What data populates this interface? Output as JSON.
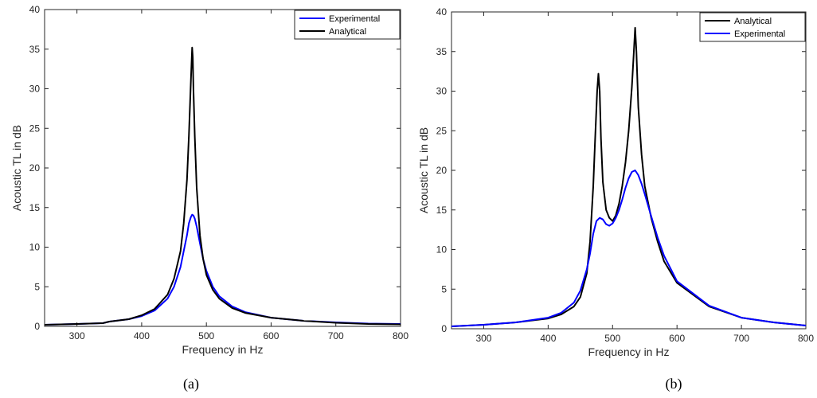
{
  "chart_data": [
    {
      "type": "line",
      "caption": "(a)",
      "xlabel": "Frequency in Hz",
      "ylabel": "Acoustic TL in dB",
      "xlim": [
        250,
        800
      ],
      "ylim": [
        0,
        40
      ],
      "xticks": [
        300,
        400,
        500,
        600,
        700,
        800
      ],
      "yticks": [
        0,
        5,
        10,
        15,
        20,
        25,
        30,
        35,
        40
      ],
      "grid": false,
      "legend": "top-right",
      "series": [
        {
          "name": "Experimental",
          "color": "#0000ff",
          "x": [
            250,
            300,
            340,
            350,
            380,
            400,
            420,
            440,
            450,
            460,
            465,
            470,
            473,
            476,
            478,
            480,
            482,
            485,
            490,
            495,
            500,
            510,
            520,
            540,
            560,
            600,
            650,
            700,
            750,
            800
          ],
          "y": [
            0.2,
            0.3,
            0.4,
            0.6,
            0.9,
            1.3,
            2.0,
            3.5,
            5.0,
            7.5,
            9.5,
            11.5,
            13.0,
            13.8,
            14.1,
            14.0,
            13.6,
            12.6,
            10.5,
            8.5,
            7.0,
            5.0,
            3.8,
            2.5,
            1.8,
            1.1,
            0.7,
            0.5,
            0.35,
            0.3
          ]
        },
        {
          "name": "Analytical",
          "color": "#000000",
          "x": [
            250,
            300,
            340,
            350,
            380,
            400,
            420,
            440,
            450,
            460,
            465,
            470,
            473,
            476,
            478,
            479,
            480,
            482,
            485,
            490,
            495,
            500,
            510,
            520,
            540,
            560,
            600,
            650,
            700,
            750,
            800
          ],
          "y": [
            0.2,
            0.3,
            0.4,
            0.6,
            0.9,
            1.4,
            2.2,
            4.0,
            6.0,
            9.5,
            13.0,
            18.5,
            24.0,
            31.0,
            35.2,
            34.0,
            30.0,
            24.0,
            17.5,
            11.5,
            8.5,
            6.5,
            4.6,
            3.5,
            2.3,
            1.7,
            1.1,
            0.7,
            0.45,
            0.3,
            0.25
          ]
        }
      ]
    },
    {
      "type": "line",
      "caption": "(b)",
      "xlabel": "Frequency in Hz",
      "ylabel": "Acoustic TL in dB",
      "xlim": [
        250,
        800
      ],
      "ylim": [
        0,
        40
      ],
      "xticks": [
        300,
        400,
        500,
        600,
        700,
        800
      ],
      "yticks": [
        0,
        5,
        10,
        15,
        20,
        25,
        30,
        35,
        40
      ],
      "grid": false,
      "legend": "top-right",
      "series": [
        {
          "name": "Analytical",
          "color": "#000000",
          "x": [
            250,
            300,
            350,
            400,
            420,
            440,
            450,
            460,
            465,
            470,
            473,
            476,
            478,
            480,
            482,
            485,
            490,
            495,
            500,
            505,
            510,
            515,
            520,
            525,
            530,
            533,
            535,
            537,
            540,
            545,
            550,
            560,
            570,
            580,
            600,
            650,
            700,
            750,
            800
          ],
          "y": [
            0.3,
            0.5,
            0.8,
            1.3,
            1.8,
            2.8,
            4.0,
            7.0,
            11.0,
            18.0,
            24.0,
            30.0,
            32.2,
            30.0,
            24.0,
            18.5,
            15.0,
            14.0,
            13.6,
            14.3,
            15.8,
            18.0,
            21.0,
            25.0,
            30.5,
            35.0,
            38.0,
            35.0,
            28.0,
            22.0,
            18.0,
            14.0,
            11.0,
            8.5,
            5.8,
            2.8,
            1.4,
            0.8,
            0.4
          ]
        },
        {
          "name": "Experimental",
          "color": "#0000ff",
          "x": [
            250,
            300,
            350,
            400,
            420,
            440,
            450,
            460,
            465,
            470,
            475,
            480,
            485,
            490,
            495,
            500,
            505,
            510,
            515,
            520,
            525,
            530,
            535,
            540,
            545,
            550,
            560,
            570,
            580,
            600,
            650,
            700,
            750,
            800
          ],
          "y": [
            0.3,
            0.5,
            0.8,
            1.4,
            2.0,
            3.3,
            4.8,
            7.5,
            9.5,
            12.0,
            13.6,
            14.0,
            13.8,
            13.2,
            13.0,
            13.3,
            14.0,
            15.0,
            16.3,
            17.8,
            19.0,
            19.8,
            20.0,
            19.4,
            18.3,
            17.0,
            14.2,
            11.5,
            9.2,
            6.0,
            2.9,
            1.4,
            0.8,
            0.4
          ]
        }
      ]
    }
  ]
}
